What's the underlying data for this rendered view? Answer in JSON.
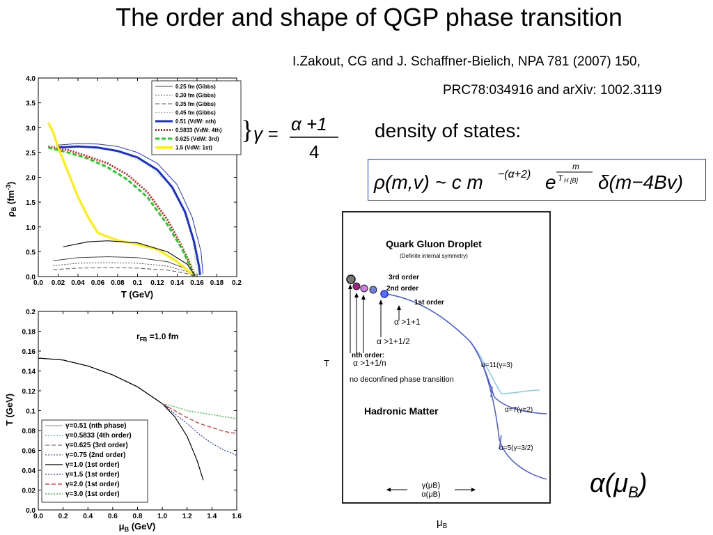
{
  "title": "The order and shape of QGP phase transition",
  "reference_line1": "I.Zakout, CG and J. Schaffner-Bielich, NPA 781 (2007) 150,",
  "reference_line2": "PRC78:034916 and arXiv: 1002.3119",
  "density_label": "density of states:",
  "gamma_formula": {
    "brace": "}",
    "lhs": "γ =",
    "numerator": "α +1",
    "denominator": "4"
  },
  "rho_formula": {
    "text": "ρ(m,v) ~ c m",
    "exp1": "−(α+2)",
    "e": "e",
    "exp2_num": "m",
    "exp2_den": "T",
    "exp2_sub": "H [B]",
    "delta": "δ(m−4Bv)"
  },
  "alpha_mu": {
    "alpha": "α(",
    "mu": "μ",
    "sub": "B",
    "close": ")"
  },
  "chart_data": [
    {
      "type": "line",
      "xlabel": "T (GeV)",
      "ylabel": "ρB (fm-3)",
      "ylabel_parts": {
        "main": "ρ",
        "sub": "B",
        "unit": " (fm",
        "sup": "-3",
        "close": ")"
      },
      "xlim": [
        0,
        0.2
      ],
      "ylim": [
        0,
        4.0
      ],
      "xticks": [
        "0.0",
        "0.02",
        "0.04",
        "0.06",
        "0.08",
        "0.1",
        "0.12",
        "0.14",
        "0.16",
        "0.18",
        "0.2"
      ],
      "xtick_values": [
        0,
        0.02,
        0.04,
        0.06,
        0.08,
        0.1,
        0.12,
        0.14,
        0.16,
        0.18,
        0.2
      ],
      "yticks": [
        "0.0",
        "0.5",
        "1.0",
        "1.5",
        "2.0",
        "2.5",
        "3.0",
        "3.5",
        "4.0"
      ],
      "ytick_values": [
        0,
        0.5,
        1,
        1.5,
        2,
        2.5,
        3,
        3.5,
        4
      ],
      "legend_position": "top-right",
      "series": [
        {
          "name": "0.25 fm (Gibbs)",
          "color": "#444444",
          "style": "solid",
          "width": 1,
          "x": [
            0.015,
            0.04,
            0.07,
            0.1,
            0.13,
            0.15,
            0.158
          ],
          "y": [
            0.32,
            0.38,
            0.4,
            0.38,
            0.3,
            0.15,
            0.0
          ]
        },
        {
          "name": "0.30 fm (Gibbs)",
          "color": "#444444",
          "style": "dot",
          "width": 1,
          "x": [
            0.015,
            0.04,
            0.07,
            0.1,
            0.13,
            0.15,
            0.158
          ],
          "y": [
            0.22,
            0.27,
            0.28,
            0.27,
            0.21,
            0.1,
            0.0
          ]
        },
        {
          "name": "0.35 fm (Gibbs)",
          "color": "#555555",
          "style": "dash",
          "width": 1,
          "x": [
            0.015,
            0.04,
            0.07,
            0.1,
            0.13,
            0.15,
            0.158
          ],
          "y": [
            0.14,
            0.17,
            0.18,
            0.17,
            0.13,
            0.06,
            0.0
          ]
        },
        {
          "name": "0.45 fm (Gibbs)",
          "color": "#99cc99",
          "style": "dot",
          "width": 1,
          "x": [
            0.015,
            0.03,
            0.05,
            0.07,
            0.09,
            0.11,
            0.13,
            0.145,
            0.155,
            0.16
          ],
          "y": [
            2.63,
            2.62,
            2.6,
            2.55,
            2.45,
            2.25,
            1.9,
            1.4,
            0.8,
            0.05
          ]
        },
        {
          "name": "0.51 (VdW: nth)",
          "color": "#1a2fd0",
          "style": "solid",
          "width": 3,
          "x": [
            0.02,
            0.04,
            0.06,
            0.08,
            0.1,
            0.12,
            0.135,
            0.148,
            0.157,
            0.162,
            0.163
          ],
          "y": [
            2.6,
            2.62,
            2.6,
            2.53,
            2.4,
            2.15,
            1.8,
            1.3,
            0.7,
            0.2,
            0.03
          ]
        },
        {
          "name": "0.5833 (VdW: 4th)",
          "color": "#e02020",
          "style": "dot",
          "width": 3,
          "x": [
            0.01,
            0.03,
            0.05,
            0.07,
            0.09,
            0.11,
            0.13,
            0.145,
            0.153,
            0.158
          ],
          "y": [
            2.62,
            2.55,
            2.42,
            2.28,
            2.05,
            1.7,
            1.15,
            0.6,
            0.25,
            0.03
          ]
        },
        {
          "name": "0.625 (VdW: 3rd)",
          "color": "#22cc22",
          "style": "dash",
          "width": 3,
          "x": [
            0.01,
            0.03,
            0.05,
            0.07,
            0.09,
            0.11,
            0.13,
            0.145,
            0.152,
            0.157
          ],
          "y": [
            2.6,
            2.5,
            2.38,
            2.2,
            1.95,
            1.6,
            1.05,
            0.55,
            0.25,
            0.03
          ]
        },
        {
          "name": "1.5 (VdW: 1st)",
          "color": "#ffee00",
          "style": "solid",
          "width": 3,
          "x": [
            0.01,
            0.015,
            0.02,
            0.03,
            0.04,
            0.05,
            0.06,
            0.08,
            0.1,
            0.12,
            0.14,
            0.155
          ],
          "y": [
            3.1,
            2.9,
            2.6,
            2.1,
            1.6,
            1.2,
            0.88,
            0.73,
            0.65,
            0.55,
            0.3,
            0.05
          ]
        },
        {
          "name": "",
          "color": "#111111",
          "style": "solid",
          "width": 1.2,
          "x": [
            0.025,
            0.05,
            0.07,
            0.1,
            0.13,
            0.15,
            0.158
          ],
          "y": [
            0.6,
            0.7,
            0.72,
            0.68,
            0.5,
            0.25,
            0.02
          ]
        },
        {
          "name": "",
          "color": "#2233dd",
          "style": "solid",
          "width": 1,
          "x": [
            0.02,
            0.04,
            0.06,
            0.08,
            0.1,
            0.12,
            0.14,
            0.155,
            0.164,
            0.166
          ],
          "y": [
            2.65,
            2.68,
            2.67,
            2.62,
            2.5,
            2.28,
            1.85,
            1.2,
            0.5,
            0.05
          ]
        }
      ]
    },
    {
      "type": "line",
      "xlabel": "μB (GeV)",
      "xlabel_parts": {
        "main": "μ",
        "sub": "B",
        "unit": " (GeV)"
      },
      "ylabel": "T (GeV)",
      "annotation": "rFB =1.0 fm",
      "annotation_parts": {
        "main": "r",
        "sub": "FB",
        "rest": " =1.0 fm"
      },
      "xlim": [
        0,
        1.6
      ],
      "ylim": [
        0,
        0.2
      ],
      "xticks": [
        "0.0",
        "0.2",
        "0.4",
        "0.6",
        "0.8",
        "1.0",
        "1.2",
        "1.4",
        "1.6"
      ],
      "xtick_values": [
        0,
        0.2,
        0.4,
        0.6,
        0.8,
        1.0,
        1.2,
        1.4,
        1.6
      ],
      "yticks": [
        "0.0",
        "0.02",
        "0.04",
        "0.06",
        "0.08",
        "0.1",
        "0.12",
        "0.14",
        "0.16",
        "0.18",
        "0.2"
      ],
      "ytick_values": [
        0,
        0.02,
        0.04,
        0.06,
        0.08,
        0.1,
        0.12,
        0.14,
        0.16,
        0.18,
        0.2
      ],
      "legend_position": "bottom-left",
      "series": [
        {
          "name": "γ=0.51 (nth phase)",
          "color": "#888888",
          "style": "solid",
          "width": 1,
          "x": [
            0,
            0.2,
            0.4,
            0.6,
            0.8,
            1.0,
            1.05
          ],
          "y": [
            0.153,
            0.151,
            0.145,
            0.136,
            0.124,
            0.107,
            0.103
          ]
        },
        {
          "name": "γ=0.5833 (4th order)",
          "color": "#4488cc",
          "style": "dot",
          "width": 1,
          "x": [
            0,
            0.2,
            0.4,
            0.6,
            0.8,
            1.0,
            1.05
          ],
          "y": [
            0.153,
            0.151,
            0.145,
            0.136,
            0.124,
            0.107,
            0.103
          ]
        },
        {
          "name": "γ=0.625 (3rd order)",
          "color": "#555555",
          "style": "dash",
          "width": 1,
          "x": [
            0,
            0.2,
            0.4,
            0.6,
            0.8,
            1.0,
            1.05
          ],
          "y": [
            0.153,
            0.151,
            0.145,
            0.136,
            0.124,
            0.107,
            0.103
          ]
        },
        {
          "name": "γ=0.75 (2nd order)",
          "color": "#333399",
          "style": "dot",
          "width": 1,
          "x": [
            0,
            0.2,
            0.4,
            0.6,
            0.8,
            1.0,
            1.05
          ],
          "y": [
            0.153,
            0.151,
            0.145,
            0.136,
            0.124,
            0.107,
            0.103
          ]
        },
        {
          "name": "γ=1.0 (1st order)",
          "color": "#000000",
          "style": "solid",
          "width": 1.2,
          "x": [
            0,
            0.2,
            0.4,
            0.6,
            0.8,
            1.0,
            1.1,
            1.2,
            1.28,
            1.33
          ],
          "y": [
            0.153,
            0.151,
            0.145,
            0.136,
            0.124,
            0.107,
            0.094,
            0.074,
            0.05,
            0.03
          ]
        },
        {
          "name": "γ=1.5 (1st order)",
          "color": "#2233dd",
          "style": "dot",
          "width": 1.2,
          "x": [
            1.0,
            1.1,
            1.2,
            1.3,
            1.4,
            1.5,
            1.6
          ],
          "y": [
            0.107,
            0.097,
            0.087,
            0.076,
            0.067,
            0.06,
            0.055
          ]
        },
        {
          "name": "γ=2.0 (1st order)",
          "color": "#e02020",
          "style": "dash",
          "width": 1.2,
          "x": [
            1.0,
            1.1,
            1.2,
            1.3,
            1.4,
            1.5,
            1.6
          ],
          "y": [
            0.107,
            0.1,
            0.093,
            0.087,
            0.083,
            0.079,
            0.077
          ]
        },
        {
          "name": "γ=3.0 (1st order)",
          "color": "#22bb22",
          "style": "dot",
          "width": 1.2,
          "x": [
            1.0,
            1.1,
            1.2,
            1.3,
            1.4,
            1.5,
            1.6
          ],
          "y": [
            0.107,
            0.104,
            0.1,
            0.098,
            0.096,
            0.094,
            0.092
          ]
        }
      ]
    }
  ],
  "diagram": {
    "title": "Quark Gluon Droplet",
    "subtitle": "(Definite internal symmetry)",
    "axis_T": "T",
    "axis_mu": "μ",
    "axis_mu_sub": "B",
    "label_3rd": "3rd order",
    "label_2nd": "2nd order",
    "label_1st": "1st order",
    "label_a1": "α >1+1",
    "label_a12": "α >1+1/2",
    "label_nth": "nth order:",
    "label_an": "α >1+1/n",
    "label_noqgp": "no deconfined phase transition",
    "label_hadron": "Hadronic Matter",
    "label_g3": "α=11(γ=3)",
    "label_g2": "α=7(γ=2)",
    "label_g32": "α=5(γ=3/2)",
    "label_gamma_mu": "γ(μB)",
    "label_alpha_mu": "α(μB)"
  }
}
